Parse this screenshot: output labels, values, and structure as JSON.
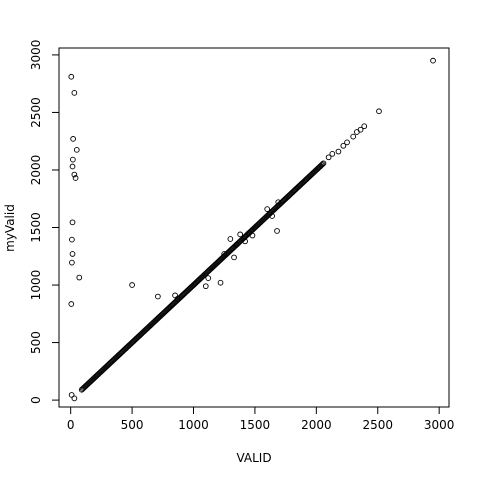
{
  "chart_data": {
    "type": "scatter",
    "title": "",
    "xlabel": "VALID",
    "ylabel": "myValid",
    "xlim": [
      -95,
      3080
    ],
    "ylim": [
      -60,
      3060
    ],
    "xticks": [
      0,
      500,
      1000,
      1500,
      2000,
      2500,
      3000
    ],
    "yticks": [
      0,
      500,
      1000,
      1500,
      2000,
      2500,
      3000
    ],
    "grid": false,
    "legend": "none",
    "marker": "open-circle",
    "diagonal_range": [
      90,
      2060
    ],
    "points": [
      {
        "x": 5,
        "y": 2810
      },
      {
        "x": 30,
        "y": 2670
      },
      {
        "x": 20,
        "y": 2270
      },
      {
        "x": 50,
        "y": 2175
      },
      {
        "x": 18,
        "y": 2090
      },
      {
        "x": 15,
        "y": 2030
      },
      {
        "x": 30,
        "y": 1960
      },
      {
        "x": 40,
        "y": 1930
      },
      {
        "x": 15,
        "y": 1545
      },
      {
        "x": 10,
        "y": 1395
      },
      {
        "x": 15,
        "y": 1270
      },
      {
        "x": 10,
        "y": 1195
      },
      {
        "x": 70,
        "y": 1065
      },
      {
        "x": 5,
        "y": 835
      },
      {
        "x": 8,
        "y": 45
      },
      {
        "x": 30,
        "y": 15
      },
      {
        "x": 500,
        "y": 1000
      },
      {
        "x": 710,
        "y": 900
      },
      {
        "x": 850,
        "y": 910
      },
      {
        "x": 870,
        "y": 880
      },
      {
        "x": 1100,
        "y": 990
      },
      {
        "x": 1120,
        "y": 1060
      },
      {
        "x": 1220,
        "y": 1020
      },
      {
        "x": 1250,
        "y": 1270
      },
      {
        "x": 1300,
        "y": 1400
      },
      {
        "x": 1330,
        "y": 1240
      },
      {
        "x": 1350,
        "y": 1350
      },
      {
        "x": 1380,
        "y": 1440
      },
      {
        "x": 1420,
        "y": 1380
      },
      {
        "x": 1450,
        "y": 1450
      },
      {
        "x": 1480,
        "y": 1430
      },
      {
        "x": 1600,
        "y": 1660
      },
      {
        "x": 1640,
        "y": 1600
      },
      {
        "x": 1680,
        "y": 1470
      },
      {
        "x": 1690,
        "y": 1720
      },
      {
        "x": 2100,
        "y": 2110
      },
      {
        "x": 2130,
        "y": 2140
      },
      {
        "x": 2180,
        "y": 2160
      },
      {
        "x": 2220,
        "y": 2210
      },
      {
        "x": 2250,
        "y": 2240
      },
      {
        "x": 2300,
        "y": 2290
      },
      {
        "x": 2330,
        "y": 2330
      },
      {
        "x": 2360,
        "y": 2350
      },
      {
        "x": 2390,
        "y": 2380
      },
      {
        "x": 2510,
        "y": 2510
      },
      {
        "x": 2950,
        "y": 2950
      }
    ]
  }
}
